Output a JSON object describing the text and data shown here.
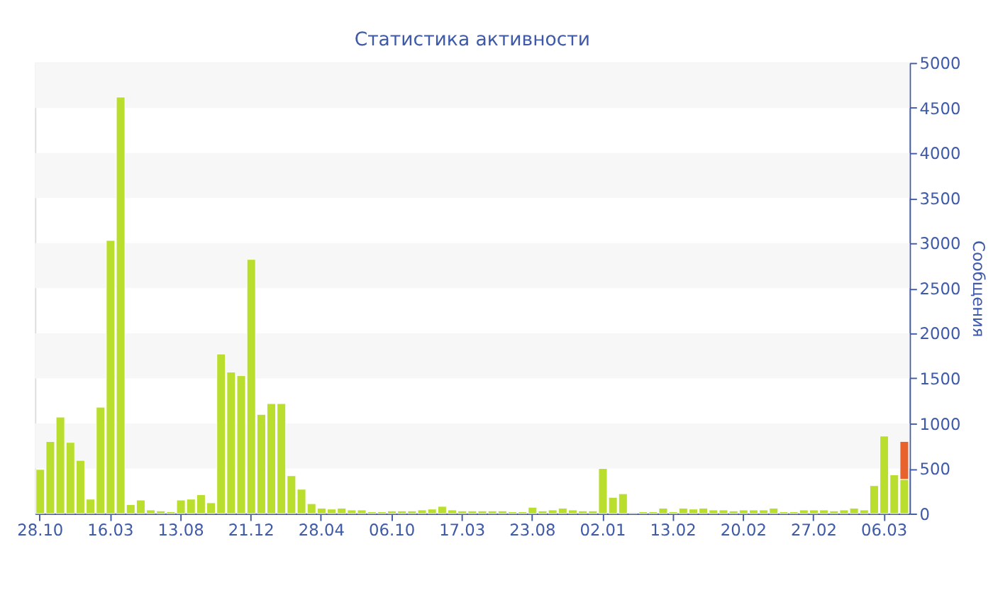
{
  "chart_data": {
    "type": "bar",
    "title": "Статистика активности",
    "ylabel": "Сообщения",
    "categories": [
      "28.10",
      null,
      null,
      null,
      null,
      null,
      null,
      "16.03",
      null,
      null,
      null,
      null,
      null,
      null,
      "13.08",
      null,
      null,
      null,
      null,
      null,
      null,
      "21.12",
      null,
      null,
      null,
      null,
      null,
      null,
      "28.04",
      null,
      null,
      null,
      null,
      null,
      null,
      "06.10",
      null,
      null,
      null,
      null,
      null,
      null,
      "17.03",
      null,
      null,
      null,
      null,
      null,
      null,
      "23.08",
      null,
      null,
      null,
      null,
      null,
      null,
      "02.01",
      null,
      null,
      null,
      null,
      null,
      null,
      "13.02",
      null,
      null,
      null,
      null,
      null,
      null,
      "20.02",
      null,
      null,
      null,
      null,
      null,
      null,
      "27.02",
      null,
      null,
      null,
      null,
      null,
      null,
      "06.03",
      null,
      null
    ],
    "series": [
      {
        "color": "#bade2e",
        "values": [
          490,
          800,
          1070,
          790,
          590,
          160,
          1180,
          3030,
          4620,
          100,
          150,
          40,
          30,
          20,
          150,
          160,
          210,
          120,
          1770,
          1570,
          1530,
          2820,
          1100,
          1220,
          1220,
          420,
          270,
          110,
          60,
          50,
          60,
          40,
          40,
          20,
          20,
          30,
          30,
          30,
          40,
          50,
          80,
          40,
          30,
          30,
          30,
          30,
          30,
          20,
          20,
          70,
          30,
          40,
          60,
          40,
          30,
          30,
          500,
          180,
          220,
          10,
          20,
          20,
          60,
          20,
          60,
          50,
          60,
          40,
          40,
          30,
          40,
          40,
          40,
          60,
          20,
          20,
          40,
          40,
          40,
          30,
          40,
          60,
          40,
          310,
          860,
          430,
          380
        ]
      },
      {
        "color": "#e8622e",
        "values": [
          null,
          null,
          null,
          null,
          null,
          null,
          null,
          null,
          null,
          null,
          null,
          null,
          null,
          null,
          null,
          null,
          null,
          null,
          null,
          null,
          null,
          null,
          null,
          null,
          null,
          null,
          null,
          null,
          null,
          null,
          null,
          null,
          null,
          null,
          null,
          null,
          null,
          null,
          null,
          null,
          null,
          null,
          null,
          null,
          null,
          null,
          null,
          null,
          null,
          null,
          null,
          null,
          null,
          null,
          null,
          null,
          null,
          null,
          null,
          null,
          null,
          null,
          null,
          null,
          null,
          null,
          null,
          null,
          null,
          null,
          null,
          null,
          null,
          null,
          null,
          null,
          null,
          null,
          null,
          null,
          null,
          null,
          null,
          null,
          null,
          null,
          420
        ]
      }
    ],
    "stacked": true,
    "ylim": [
      0,
      5000
    ],
    "yticks": [
      0,
      500,
      1000,
      1500,
      2000,
      2500,
      3000,
      3500,
      4000,
      4500,
      5000
    ],
    "bands": [
      {
        "axis": "y",
        "from": 500,
        "to": 1000,
        "color": "#f7f7f7"
      },
      {
        "axis": "y",
        "from": 1500,
        "to": 2000,
        "color": "#f7f7f7"
      },
      {
        "axis": "y",
        "from": 2500,
        "to": 3000,
        "color": "#f7f7f7"
      },
      {
        "axis": "y",
        "from": 3500,
        "to": 4000,
        "color": "#f7f7f7"
      },
      {
        "axis": "y",
        "from": 4500,
        "to": 5000,
        "color": "#f7f7f7"
      }
    ],
    "grid": false,
    "legend": false
  }
}
